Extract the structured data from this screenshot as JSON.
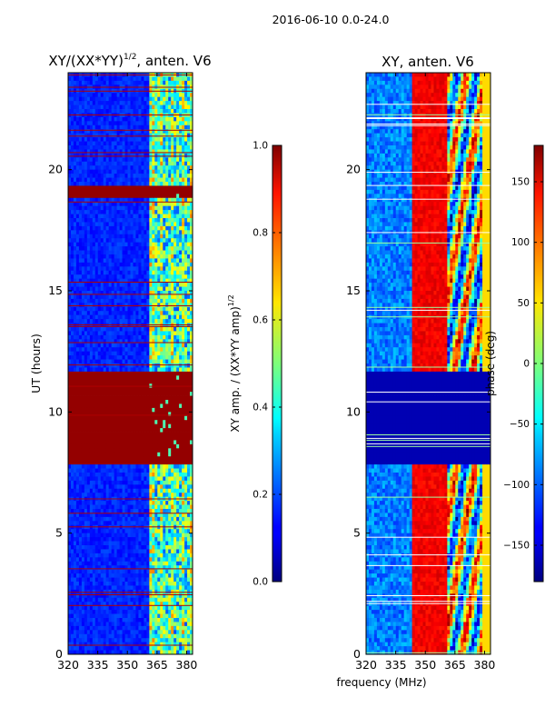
{
  "suptitle": "2016-06-10 0.0-24.0",
  "chart_data": [
    {
      "type": "heatmap",
      "title_main": "XY/(XX*YY)",
      "title_sup": "1/2",
      "title_rest": ", anten. V6",
      "xlim": [
        320,
        383
      ],
      "ylim": [
        0,
        24
      ],
      "xticks": [
        320,
        335,
        350,
        365,
        380
      ],
      "yticks": [
        0,
        5,
        10,
        15,
        20
      ],
      "ylabel": "UT (hours)",
      "band_start_mhz": 360,
      "saturated_hours": [
        [
          7.8,
          11.7
        ],
        [
          18.9,
          19.3
        ]
      ],
      "colorbar": {
        "label_main": "XY amp. / (XX*YY amp)",
        "label_sup": "1/2",
        "range": [
          0,
          1
        ],
        "ticks": [
          "0.0",
          "0.2",
          "0.4",
          "0.6",
          "0.8",
          "1.0"
        ]
      }
    },
    {
      "type": "heatmap",
      "title": "XY, anten. V6",
      "xlim": [
        320,
        383
      ],
      "ylim": [
        0,
        24
      ],
      "xticks": [
        320,
        335,
        350,
        365,
        380
      ],
      "yticks": [
        0,
        5,
        10,
        15,
        20
      ],
      "xlabel": "frequency (MHz)",
      "red_band_mhz": [
        343,
        360
      ],
      "phase_gap_hours": [
        7.9,
        11.7
      ],
      "colorbar": {
        "label": "phase (deg)",
        "range": [
          -180,
          180
        ],
        "ticks": [
          "−150",
          "−100",
          "−50",
          "0",
          "50",
          "100",
          "150"
        ]
      }
    }
  ]
}
